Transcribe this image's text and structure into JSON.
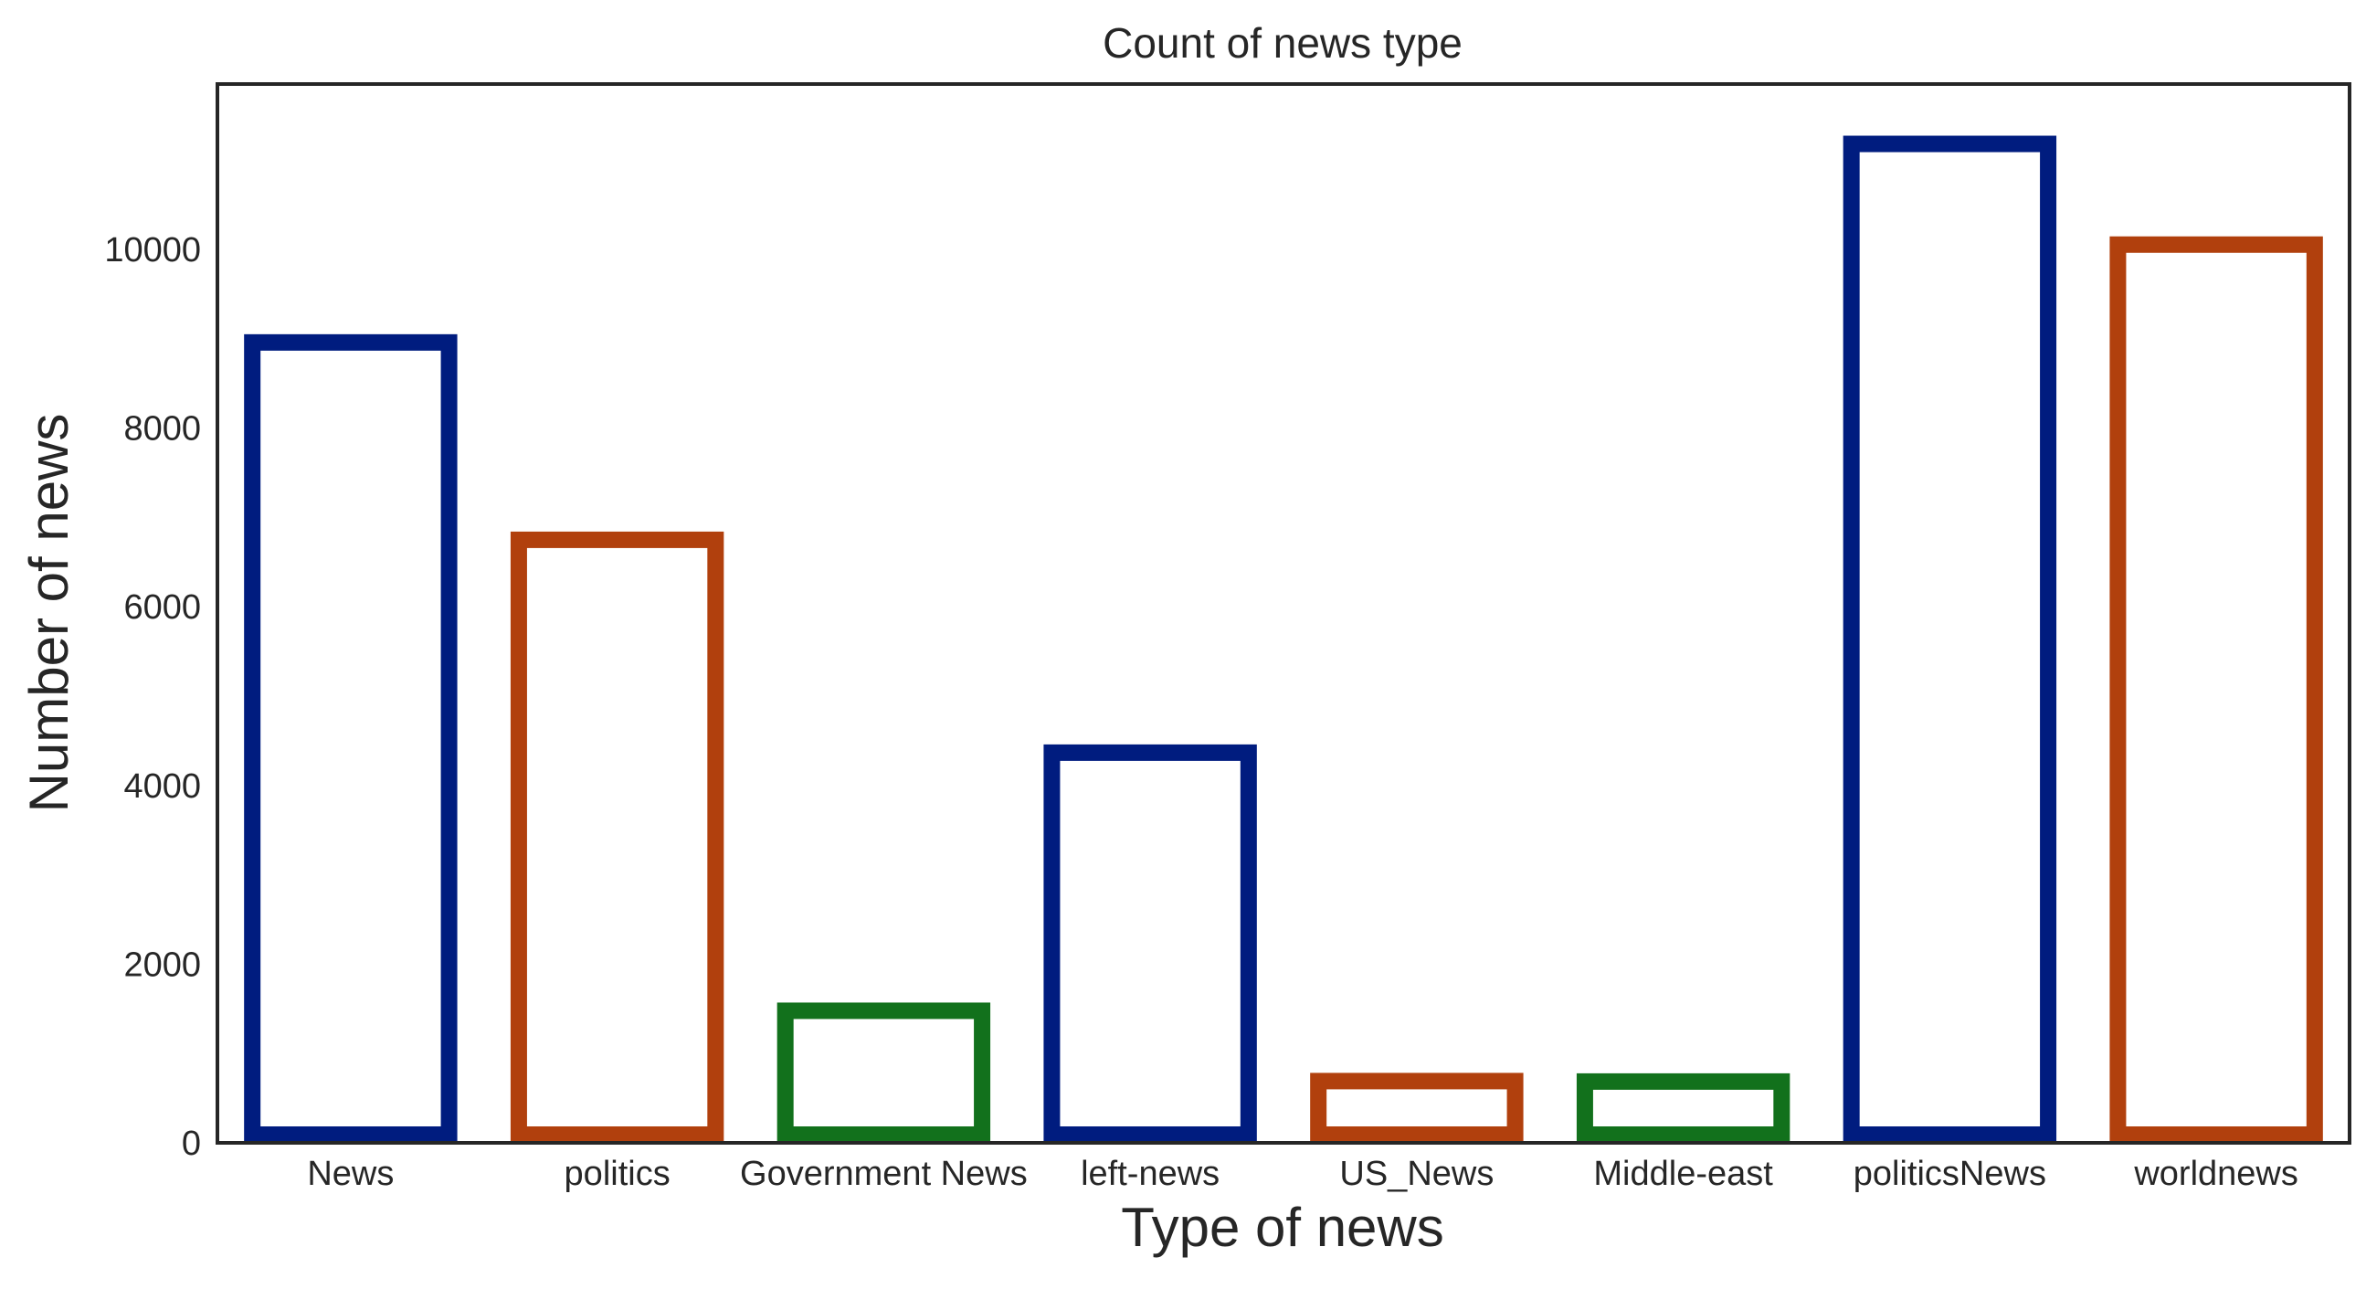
{
  "chart_data": {
    "type": "bar",
    "title": "Count of news type",
    "xlabel": "Type of news",
    "ylabel": "Number of news",
    "categories": [
      "News",
      "politics",
      "Government News",
      "left-news",
      "US_News",
      "Middle-east",
      "politicsNews",
      "worldnews"
    ],
    "values": [
      9050,
      6841,
      1570,
      4459,
      783,
      778,
      11272,
      10145
    ],
    "bar_colors": [
      "#001c7f",
      "#b1400d",
      "#12711c",
      "#001c7f",
      "#b1400d",
      "#12711c",
      "#001c7f",
      "#b1400d"
    ],
    "bar_style": "outline",
    "ylim": [
      0,
      11850
    ],
    "yticks": [
      0,
      2000,
      4000,
      6000,
      8000,
      10000
    ],
    "grid": false,
    "legend": "none"
  }
}
